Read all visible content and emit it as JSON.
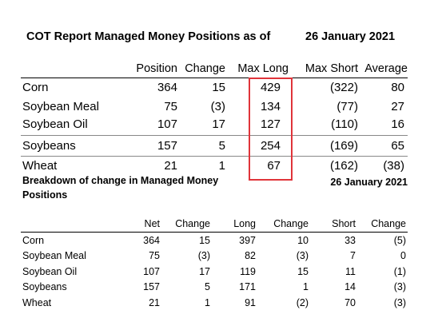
{
  "report": {
    "title": "COT Report Managed Money Positions as of",
    "date": "26 January 2021"
  },
  "table1": {
    "columns": [
      "Position",
      "Change",
      "Max Long",
      "Max Short",
      "Average"
    ],
    "rows": [
      {
        "name": "Corn",
        "values": [
          "364",
          "15",
          "429",
          "(322)",
          "80"
        ]
      },
      {
        "name": "Soybean Meal",
        "values": [
          "75",
          "(3)",
          "134",
          "(77)",
          "27"
        ]
      },
      {
        "name": "Soybean Oil",
        "values": [
          "107",
          "17",
          "127",
          "(110)",
          "16"
        ]
      },
      {
        "name": "Soybeans",
        "values": [
          "157",
          "5",
          "254",
          "(169)",
          "65"
        ]
      },
      {
        "name": "Wheat",
        "values": [
          "21",
          "1",
          "67",
          "(162)",
          "(38)"
        ]
      }
    ]
  },
  "breakdown": {
    "title_line1": "Breakdown of change in Managed Money",
    "title_line2": "Positions",
    "date": "26 January 2021"
  },
  "table2": {
    "columns": [
      "Net",
      "Change",
      "Long",
      "Change",
      "Short",
      "Change"
    ],
    "rows": [
      {
        "name": "Corn",
        "values": [
          "364",
          "15",
          "397",
          "10",
          "33",
          "(5)"
        ]
      },
      {
        "name": "Soybean Meal",
        "values": [
          "75",
          "(3)",
          "82",
          "(3)",
          "7",
          "0"
        ]
      },
      {
        "name": "Soybean Oil",
        "values": [
          "107",
          "17",
          "119",
          "15",
          "11",
          "(1)"
        ]
      },
      {
        "name": "Soybeans",
        "values": [
          "157",
          "5",
          "171",
          "1",
          "14",
          "(3)"
        ]
      },
      {
        "name": "Wheat",
        "values": [
          "21",
          "1",
          "91",
          "(2)",
          "70",
          "(3)"
        ]
      }
    ]
  },
  "colors": {
    "highlight_border": "#e0343a"
  }
}
